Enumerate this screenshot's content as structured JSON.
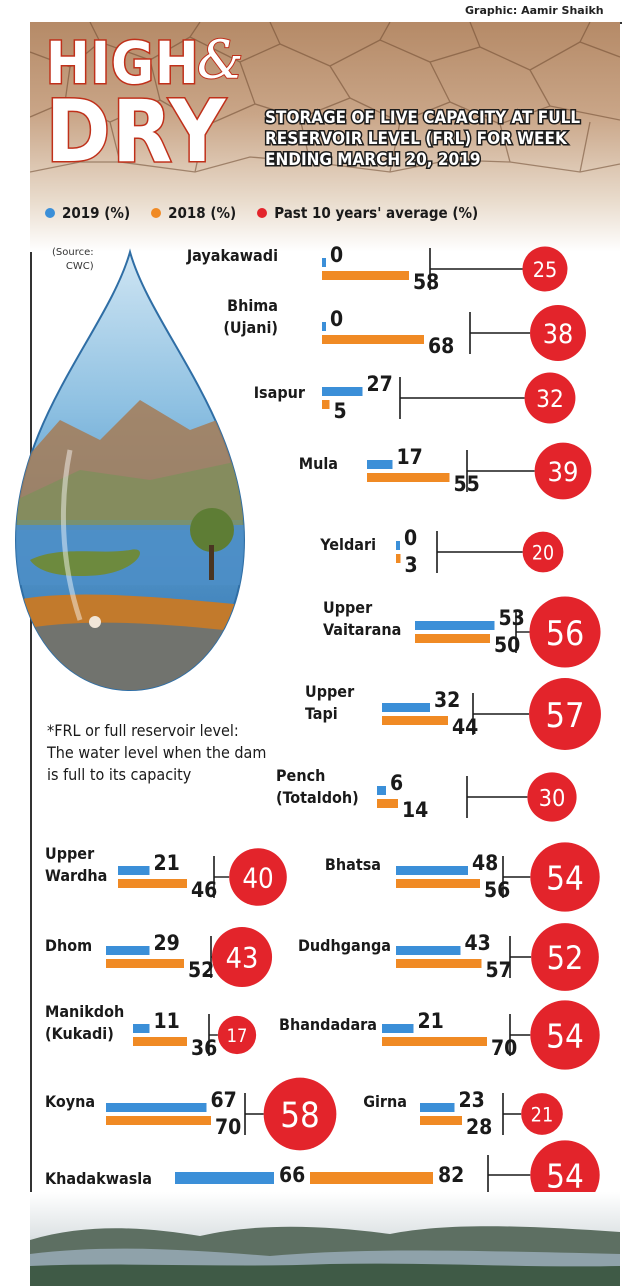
{
  "credit": "Graphic: Aamir Shaikh",
  "title": {
    "line1": "HIGH",
    "amp": "&",
    "line2": "DRY"
  },
  "subtitle": "STORAGE OF LIVE CAPACITY AT FULL RESERVOIR LEVEL (FRL) FOR WEEK ENDING MARCH 20, 2019",
  "legend": [
    {
      "label": "2019 (%)",
      "color": "#3b8fd8"
    },
    {
      "label": "2018 (%)",
      "color": "#f08a24"
    },
    {
      "label": "Past 10 years' average (%)",
      "color": "#e3242b"
    }
  ],
  "source_note": [
    "(Source:",
    "CWC)"
  ],
  "frl_note": "*FRL or full reservoir level: The water level when the dam is full to its capacity",
  "colors": {
    "y2019": "#3b8fd8",
    "y2018": "#f08a24",
    "average": "#e3242b",
    "title_outline": "#c0301a"
  },
  "chart_data": {
    "type": "bar",
    "unit": "%",
    "title": "STORAGE OF LIVE CAPACITY AT FULL RESERVOIR LEVEL (FRL) FOR WEEK ENDING MARCH 20, 2019",
    "series": [
      {
        "name": "2019 (%)",
        "values": [
          0,
          0,
          27,
          17,
          0,
          53,
          32,
          6,
          21,
          48,
          29,
          43,
          11,
          21,
          67,
          23,
          66
        ]
      },
      {
        "name": "2018 (%)",
        "values": [
          58,
          68,
          5,
          55,
          3,
          50,
          44,
          14,
          46,
          56,
          52,
          57,
          36,
          70,
          70,
          28,
          82
        ]
      },
      {
        "name": "Past 10 years' average (%)",
        "values": [
          25,
          38,
          32,
          39,
          20,
          56,
          57,
          30,
          40,
          54,
          43,
          52,
          17,
          54,
          58,
          21,
          54
        ]
      }
    ],
    "reservoirs": [
      {
        "name": [
          "Jayakawadi"
        ],
        "v2019": 0,
        "v2018": 58,
        "avg": 25
      },
      {
        "name": [
          "Bhima",
          "(Ujani)"
        ],
        "v2019": 0,
        "v2018": 68,
        "avg": 38
      },
      {
        "name": [
          "Isapur"
        ],
        "v2019": 27,
        "v2018": 5,
        "avg": 32
      },
      {
        "name": [
          "Mula"
        ],
        "v2019": 17,
        "v2018": 55,
        "avg": 39
      },
      {
        "name": [
          "Yeldari"
        ],
        "v2019": 0,
        "v2018": 3,
        "avg": 20
      },
      {
        "name": [
          "Upper",
          "Vaitarana"
        ],
        "v2019": 53,
        "v2018": 50,
        "avg": 56
      },
      {
        "name": [
          "Upper",
          "Tapi"
        ],
        "v2019": 32,
        "v2018": 44,
        "avg": 57
      },
      {
        "name": [
          "Pench",
          "(Totaldoh)"
        ],
        "v2019": 6,
        "v2018": 14,
        "avg": 30
      },
      {
        "name": [
          "Upper",
          "Wardha"
        ],
        "v2019": 21,
        "v2018": 46,
        "avg": 40
      },
      {
        "name": [
          "Bhatsa"
        ],
        "v2019": 48,
        "v2018": 56,
        "avg": 54
      },
      {
        "name": [
          "Dhom"
        ],
        "v2019": 29,
        "v2018": 52,
        "avg": 43
      },
      {
        "name": [
          "Dudhganga"
        ],
        "v2019": 43,
        "v2018": 57,
        "avg": 52
      },
      {
        "name": [
          "Manikdoh",
          "(Kukadi)"
        ],
        "v2019": 11,
        "v2018": 36,
        "avg": 17
      },
      {
        "name": [
          "Bhandadara"
        ],
        "v2019": 21,
        "v2018": 70,
        "avg": 54
      },
      {
        "name": [
          "Koyna"
        ],
        "v2019": 67,
        "v2018": 70,
        "avg": 58
      },
      {
        "name": [
          "Girna"
        ],
        "v2019": 23,
        "v2018": 28,
        "avg": 21
      },
      {
        "name": [
          "Khadakwasla"
        ],
        "v2019": 66,
        "v2018": 82,
        "avg": 54
      }
    ]
  }
}
